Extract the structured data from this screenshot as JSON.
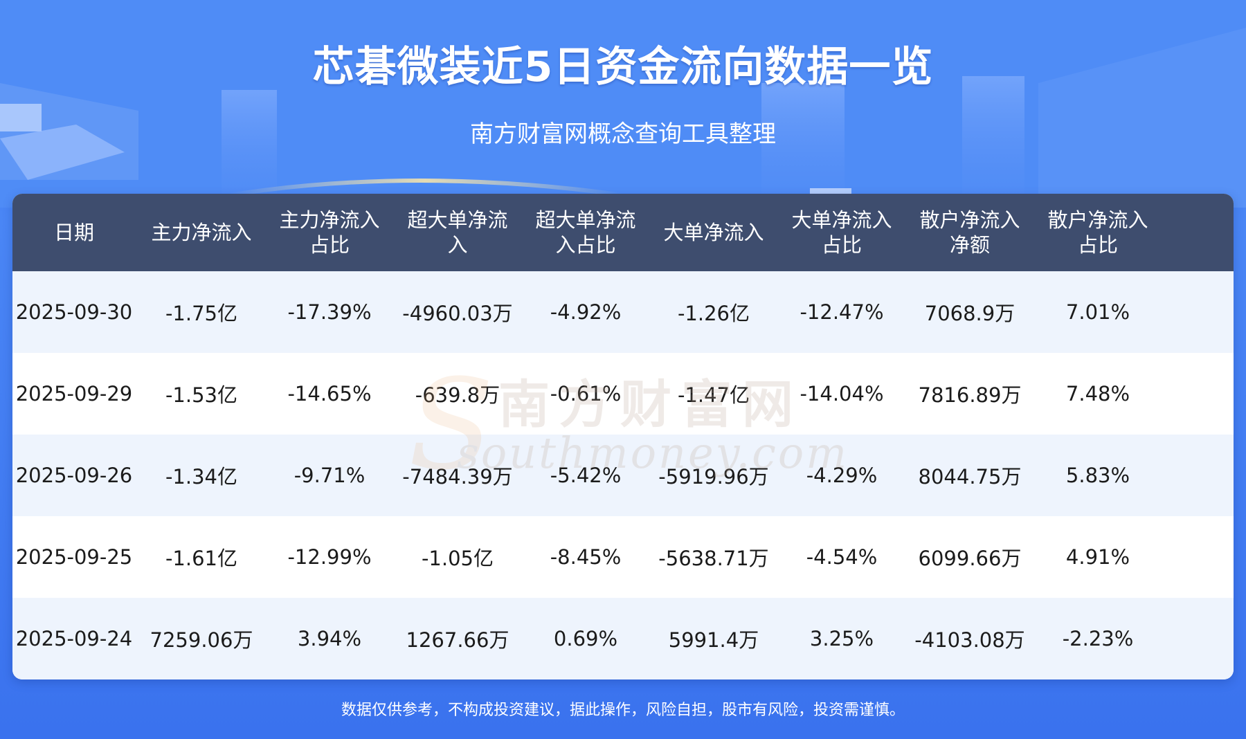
{
  "header": {
    "title": "芯碁微装近5日资金流向数据一览",
    "subtitle": "南方财富网概念查询工具整理"
  },
  "chart_data": {
    "type": "table",
    "columns": [
      "日期",
      "主力净流入",
      "主力净流入\n占比",
      "超大单净流\n入",
      "超大单净流\n入占比",
      "大单净流入",
      "大单净流入\n占比",
      "散户净流入\n净额",
      "散户净流入\n占比"
    ],
    "rows": [
      [
        "2025-09-30",
        "-1.75亿",
        "-17.39%",
        "-4960.03万",
        "-4.92%",
        "-1.26亿",
        "-12.47%",
        "7068.9万",
        "7.01%"
      ],
      [
        "2025-09-29",
        "-1.53亿",
        "-14.65%",
        "-639.8万",
        "-0.61%",
        "-1.47亿",
        "-14.04%",
        "7816.89万",
        "7.48%"
      ],
      [
        "2025-09-26",
        "-1.34亿",
        "-9.71%",
        "-7484.39万",
        "-5.42%",
        "-5919.96万",
        "-4.29%",
        "8044.75万",
        "5.83%"
      ],
      [
        "2025-09-25",
        "-1.61亿",
        "-12.99%",
        "-1.05亿",
        "-8.45%",
        "-5638.71万",
        "-4.54%",
        "6099.66万",
        "4.91%"
      ],
      [
        "2025-09-24",
        "7259.06万",
        "3.94%",
        "1267.66万",
        "0.69%",
        "5991.4万",
        "3.25%",
        "-4103.08万",
        "-2.23%"
      ]
    ]
  },
  "watermark": {
    "cn": "南方财富网",
    "en": "southmoney.com"
  },
  "footer": {
    "disclaimer": "数据仅供参考，不构成投资建议，据此操作，风险自担，股市有风险，投资需谨慎。"
  },
  "colors": {
    "background": "#4a86f5",
    "header_row": "#3e4d6e",
    "row_odd": "#eef4fd",
    "row_even": "#ffffff"
  }
}
